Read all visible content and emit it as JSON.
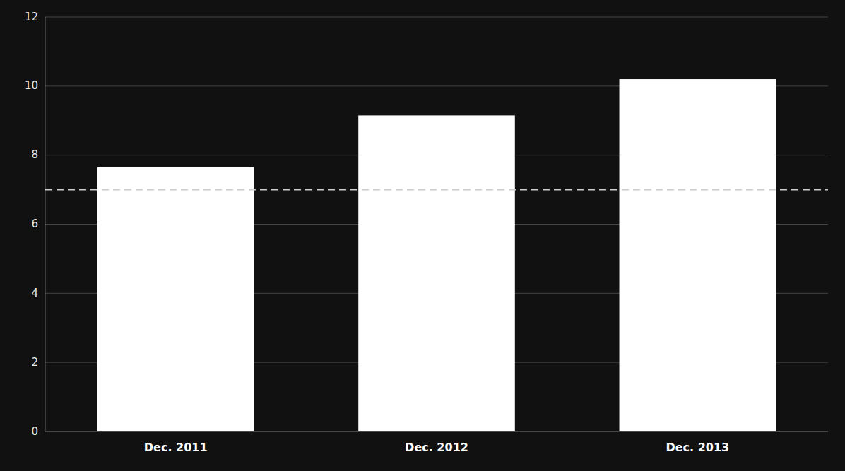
{
  "chart_data": {
    "type": "bar",
    "categories": [
      "Dec. 2011",
      "Dec. 2012",
      "Dec. 2013"
    ],
    "values": [
      7.65,
      9.15,
      10.2
    ],
    "color": "#ffffff",
    "reference_line": 7.0,
    "ylim": [
      0,
      12
    ],
    "yticks": [
      0,
      2,
      4,
      6,
      8,
      10,
      12
    ],
    "grid": true
  }
}
